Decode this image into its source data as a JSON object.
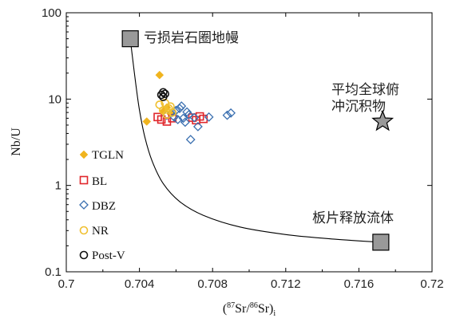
{
  "chart_data": {
    "type": "scatter",
    "xlabel": "(87Sr/86Sr)i",
    "xlabel_parts": {
      "open": "(",
      "sup1": "87",
      "mid": "Sr/",
      "sup2": "86",
      "close": "Sr)",
      "sub": "i"
    },
    "ylabel": "Nb/U",
    "xlim": [
      0.7,
      0.72
    ],
    "ylim": [
      0.1,
      100
    ],
    "yscale": "log",
    "x_ticks": [
      "0.7",
      "0.704",
      "0.708",
      "0.712",
      "0.716",
      "0.72"
    ],
    "x_tick_values": [
      0.7,
      0.704,
      0.708,
      0.712,
      0.716,
      0.72
    ],
    "y_ticks": [
      "100",
      "10",
      "1",
      "0.1"
    ],
    "y_tick_values": [
      100,
      10,
      1,
      0.1
    ],
    "legend_position": "left-middle",
    "series": [
      {
        "name": "TGLN",
        "marker": "diamond-filled",
        "color": "#f0b41e",
        "x": [
          0.7044,
          0.7051,
          0.7053,
          0.7055,
          0.7057
        ],
        "y": [
          5.5,
          19.0,
          7.2,
          8.0,
          6.8
        ]
      },
      {
        "name": "BL",
        "marker": "square-open",
        "color": "#e0262b",
        "x": [
          0.705,
          0.7052,
          0.7055,
          0.7058,
          0.7069,
          0.7071,
          0.7073,
          0.7075
        ],
        "y": [
          6.2,
          5.8,
          5.5,
          6.0,
          6.1,
          5.7,
          6.3,
          5.9
        ]
      },
      {
        "name": "DBZ",
        "marker": "diamond-open",
        "color": "#3a6fb0",
        "x": [
          0.7055,
          0.7058,
          0.706,
          0.7062,
          0.7063,
          0.7064,
          0.7065,
          0.7066,
          0.7067,
          0.7068,
          0.707,
          0.7072,
          0.7078,
          0.7088,
          0.709,
          0.7061,
          0.7059
        ],
        "y": [
          6.5,
          7.0,
          7.4,
          7.8,
          8.3,
          6.0,
          5.4,
          7.1,
          6.6,
          3.4,
          6.1,
          4.8,
          6.2,
          6.5,
          6.9,
          5.8,
          6.2
        ]
      },
      {
        "name": "NR",
        "marker": "circle-open",
        "color": "#f0c030",
        "x": [
          0.7051,
          0.7053,
          0.7054,
          0.7055,
          0.7056,
          0.7057,
          0.7058
        ],
        "y": [
          8.6,
          7.4,
          9.0,
          6.6,
          7.8,
          8.2,
          7.0
        ]
      },
      {
        "name": "Post-V",
        "marker": "circle-open",
        "color": "#111111",
        "x": [
          0.7052,
          0.7053,
          0.7054,
          0.7053
        ],
        "y": [
          11.2,
          12.0,
          11.5,
          10.6
        ]
      }
    ],
    "end_members": [
      {
        "label": "亏损岩石圈地幔",
        "x": 0.7035,
        "y": 50,
        "marker": "square-filled",
        "color": "#999999"
      },
      {
        "label": "板片释放流体",
        "x": 0.7172,
        "y": 0.22,
        "marker": "square-filled",
        "color": "#999999"
      },
      {
        "label_lines": [
          "平均全球俯",
          "冲沉积物"
        ],
        "x": 0.7173,
        "y": 5.5,
        "marker": "star-filled",
        "color": "#999999"
      }
    ],
    "mixing_curve": {
      "x": [
        0.7035,
        0.7036,
        0.7038,
        0.704,
        0.7043,
        0.7047,
        0.7053,
        0.7062,
        0.7075,
        0.7095,
        0.712,
        0.7145,
        0.7172
      ],
      "y": [
        50,
        33,
        15,
        7.5,
        3.6,
        1.9,
        1.05,
        0.65,
        0.45,
        0.33,
        0.27,
        0.24,
        0.22
      ]
    }
  }
}
